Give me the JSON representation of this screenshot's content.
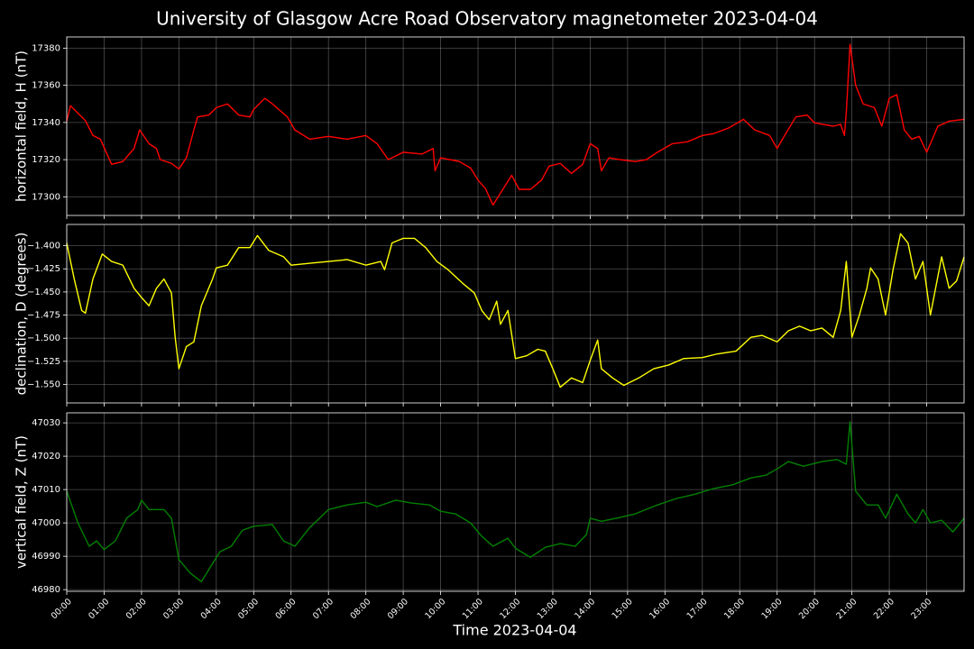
{
  "chart_data": [
    {
      "type": "line",
      "title": "University of Glasgow Acre Road Observatory magnetometer 2023-04-04",
      "ylabel": "horizontal field, H (nT)",
      "color": "#ff0000",
      "grid": true,
      "ylim": [
        17290,
        17386
      ],
      "yticks": [
        17300,
        17320,
        17340,
        17360,
        17380
      ],
      "x": [
        0,
        0.1,
        0.5,
        0.7,
        0.9,
        1.2,
        1.5,
        1.8,
        1.95,
        2.2,
        2.4,
        2.5,
        2.8,
        3.0,
        3.2,
        3.4,
        3.5,
        3.8,
        4.0,
        4.3,
        4.6,
        4.9,
        5.0,
        5.3,
        5.5,
        5.9,
        6.1,
        6.5,
        7.0,
        7.5,
        8.0,
        8.3,
        8.6,
        9.0,
        9.5,
        9.8,
        9.85,
        10.0,
        10.5,
        10.8,
        11.0,
        11.2,
        11.4,
        11.6,
        11.9,
        12.1,
        12.4,
        12.7,
        12.9,
        13.2,
        13.5,
        13.8,
        14.0,
        14.2,
        14.3,
        14.5,
        14.8,
        15.2,
        15.5,
        15.8,
        16.2,
        16.6,
        17.0,
        17.3,
        17.7,
        18.1,
        18.4,
        18.8,
        19.0,
        19.2,
        19.5,
        19.8,
        20.0,
        20.5,
        20.7,
        20.8,
        20.85,
        20.95,
        21.1,
        21.3,
        21.6,
        21.8,
        22.0,
        22.2,
        22.4,
        22.6,
        22.8,
        23.0,
        23.3,
        23.6,
        24.0
      ],
      "values": [
        17340.7,
        17349,
        17341,
        17333,
        17331,
        17317.5,
        17319,
        17326,
        17336,
        17328.6,
        17326,
        17320,
        17318,
        17315,
        17321,
        17336,
        17343,
        17344,
        17348,
        17350,
        17344,
        17343,
        17347,
        17353,
        17350,
        17343,
        17336,
        17331,
        17332.5,
        17331,
        17333,
        17328.6,
        17320,
        17324,
        17323,
        17326,
        17314,
        17321,
        17319,
        17315.5,
        17309,
        17304.4,
        17295.6,
        17302,
        17311.6,
        17304,
        17304,
        17309,
        17316.5,
        17318,
        17312.6,
        17317.5,
        17328.6,
        17326,
        17314,
        17321,
        17320,
        17319,
        17320,
        17324,
        17328.6,
        17329.6,
        17333,
        17334,
        17337,
        17341.7,
        17336,
        17333,
        17326,
        17333,
        17343,
        17344,
        17339.8,
        17338,
        17339,
        17333,
        17345.6,
        17382,
        17360,
        17350,
        17348,
        17338,
        17353,
        17355,
        17336,
        17331,
        17332.5,
        17324,
        17338,
        17340.7,
        17341.7
      ]
    },
    {
      "type": "line",
      "ylabel": "declination, D (degrees)",
      "color": "#ffff00",
      "grid": true,
      "ylim": [
        -1.57,
        -1.377
      ],
      "yticks": [
        {
          "value": -1.4,
          "label": "−1.400"
        },
        {
          "value": -1.425,
          "label": "−1.425"
        },
        {
          "value": -1.45,
          "label": "−1.450"
        },
        {
          "value": -1.475,
          "label": "−1.475"
        },
        {
          "value": -1.5,
          "label": "−1.500"
        },
        {
          "value": -1.525,
          "label": "−1.525"
        },
        {
          "value": -1.55,
          "label": "−1.550"
        }
      ],
      "x": [
        0,
        0.2,
        0.4,
        0.5,
        0.7,
        0.95,
        1.2,
        1.5,
        1.8,
        2.0,
        2.2,
        2.4,
        2.6,
        2.8,
        2.9,
        3.0,
        3.2,
        3.4,
        3.6,
        3.9,
        4.0,
        4.3,
        4.6,
        4.9,
        5.1,
        5.4,
        5.8,
        6.0,
        6.5,
        7.0,
        7.5,
        8.0,
        8.4,
        8.5,
        8.7,
        9.0,
        9.3,
        9.6,
        9.9,
        10.2,
        10.6,
        10.9,
        11.1,
        11.3,
        11.5,
        11.6,
        11.8,
        12.0,
        12.3,
        12.6,
        12.8,
        13.0,
        13.2,
        13.5,
        13.8,
        14.0,
        14.2,
        14.3,
        14.6,
        14.9,
        15.3,
        15.7,
        16.1,
        16.5,
        17.0,
        17.4,
        17.9,
        18.3,
        18.6,
        19.0,
        19.3,
        19.6,
        19.9,
        20.2,
        20.5,
        20.7,
        20.85,
        21.0,
        21.2,
        21.4,
        21.5,
        21.7,
        21.9,
        22.1,
        22.3,
        22.5,
        22.7,
        22.9,
        23.1,
        23.4,
        23.6,
        23.8,
        24.0
      ],
      "values": [
        -1.397,
        -1.436,
        -1.47,
        -1.473,
        -1.436,
        -1.409,
        -1.417,
        -1.421,
        -1.446,
        -1.456,
        -1.465,
        -1.446,
        -1.436,
        -1.451,
        -1.499,
        -1.533,
        -1.509,
        -1.504,
        -1.465,
        -1.436,
        -1.424,
        -1.421,
        -1.402,
        -1.402,
        -1.389,
        -1.405,
        -1.412,
        -1.421,
        -1.419,
        -1.417,
        -1.415,
        -1.421,
        -1.417,
        -1.426,
        -1.397,
        -1.392,
        -1.392,
        -1.402,
        -1.417,
        -1.426,
        -1.441,
        -1.451,
        -1.47,
        -1.48,
        -1.46,
        -1.485,
        -1.47,
        -1.522,
        -1.519,
        -1.512,
        -1.514,
        -1.533,
        -1.553,
        -1.543,
        -1.548,
        -1.524,
        -1.502,
        -1.533,
        -1.543,
        -1.551,
        -1.543,
        -1.533,
        -1.529,
        -1.522,
        -1.521,
        -1.517,
        -1.514,
        -1.499,
        -1.497,
        -1.504,
        -1.492,
        -1.487,
        -1.492,
        -1.489,
        -1.499,
        -1.47,
        -1.417,
        -1.499,
        -1.475,
        -1.446,
        -1.424,
        -1.436,
        -1.475,
        -1.426,
        -1.387,
        -1.397,
        -1.436,
        -1.417,
        -1.475,
        -1.412,
        -1.446,
        -1.438,
        -1.412
      ]
    },
    {
      "type": "line",
      "ylabel": "vertical field, Z (nT)",
      "xlabel": "Time 2023-04-04",
      "color": "#008000",
      "grid": true,
      "ylim": [
        46979.5,
        47033
      ],
      "yticks": [
        46980,
        46990,
        47000,
        47010,
        47020,
        47030
      ],
      "xlim": [
        0,
        24
      ],
      "xticks": [
        {
          "value": 0,
          "label": "00:00"
        },
        {
          "value": 1,
          "label": "01:00"
        },
        {
          "value": 2,
          "label": "02:00"
        },
        {
          "value": 3,
          "label": "03:00"
        },
        {
          "value": 4,
          "label": "04:00"
        },
        {
          "value": 5,
          "label": "05:00"
        },
        {
          "value": 6,
          "label": "06:00"
        },
        {
          "value": 7,
          "label": "07:00"
        },
        {
          "value": 8,
          "label": "08:00"
        },
        {
          "value": 9,
          "label": "09:00"
        },
        {
          "value": 10,
          "label": "10:00"
        },
        {
          "value": 11,
          "label": "11:00"
        },
        {
          "value": 12,
          "label": "12:00"
        },
        {
          "value": 13,
          "label": "13:00"
        },
        {
          "value": 14,
          "label": "14:00"
        },
        {
          "value": 15,
          "label": "15:00"
        },
        {
          "value": 16,
          "label": "16:00"
        },
        {
          "value": 17,
          "label": "17:00"
        },
        {
          "value": 18,
          "label": "18:00"
        },
        {
          "value": 19,
          "label": "19:00"
        },
        {
          "value": 20,
          "label": "20:00"
        },
        {
          "value": 21,
          "label": "21:00"
        },
        {
          "value": 22,
          "label": "22:00"
        },
        {
          "value": 23,
          "label": "23:00"
        }
      ],
      "x": [
        0,
        0.3,
        0.6,
        0.8,
        1.0,
        1.3,
        1.6,
        1.9,
        2.0,
        2.2,
        2.6,
        2.8,
        3.0,
        3.3,
        3.6,
        3.9,
        4.1,
        4.4,
        4.7,
        5.0,
        5.5,
        5.8,
        6.1,
        6.5,
        7.0,
        7.5,
        8.0,
        8.3,
        8.8,
        9.2,
        9.7,
        10.0,
        10.4,
        10.8,
        11.1,
        11.4,
        11.8,
        12.0,
        12.4,
        12.8,
        13.2,
        13.6,
        13.9,
        14.0,
        14.3,
        14.7,
        15.2,
        15.8,
        16.3,
        16.8,
        17.3,
        17.8,
        18.3,
        18.7,
        19.0,
        19.3,
        19.7,
        20.2,
        20.6,
        20.85,
        20.95,
        21.1,
        21.4,
        21.7,
        21.9,
        22.2,
        22.5,
        22.7,
        22.9,
        23.1,
        23.4,
        23.7,
        24.0
      ],
      "values": [
        47009.5,
        47000,
        46993,
        46994.6,
        46992,
        46994.6,
        47001.4,
        47004,
        47006.8,
        47004,
        47004,
        47001.4,
        46989,
        46985,
        46982.4,
        46987.8,
        46991.4,
        46993,
        46997.8,
        46999,
        46999.5,
        46994.6,
        46993,
        46998.6,
        47004,
        47005.4,
        47006.2,
        47004.9,
        47006.8,
        47006,
        47005.4,
        47003.5,
        47002.7,
        47000,
        46996,
        46993,
        46995.4,
        46992.4,
        46989.7,
        46992.7,
        46993.8,
        46993,
        46996.5,
        47001.4,
        47000.5,
        47001.4,
        47002.7,
        47005.4,
        47007.3,
        47008.6,
        47010.3,
        47011.4,
        47013.5,
        47014.3,
        47016.2,
        47018.4,
        47017,
        47018.4,
        47019,
        47017.6,
        47030.3,
        47009.5,
        47005.4,
        47005.4,
        47001.4,
        47008.6,
        47002.7,
        47000,
        47004,
        47000,
        47000.8,
        46997.3,
        47001.4
      ]
    }
  ]
}
